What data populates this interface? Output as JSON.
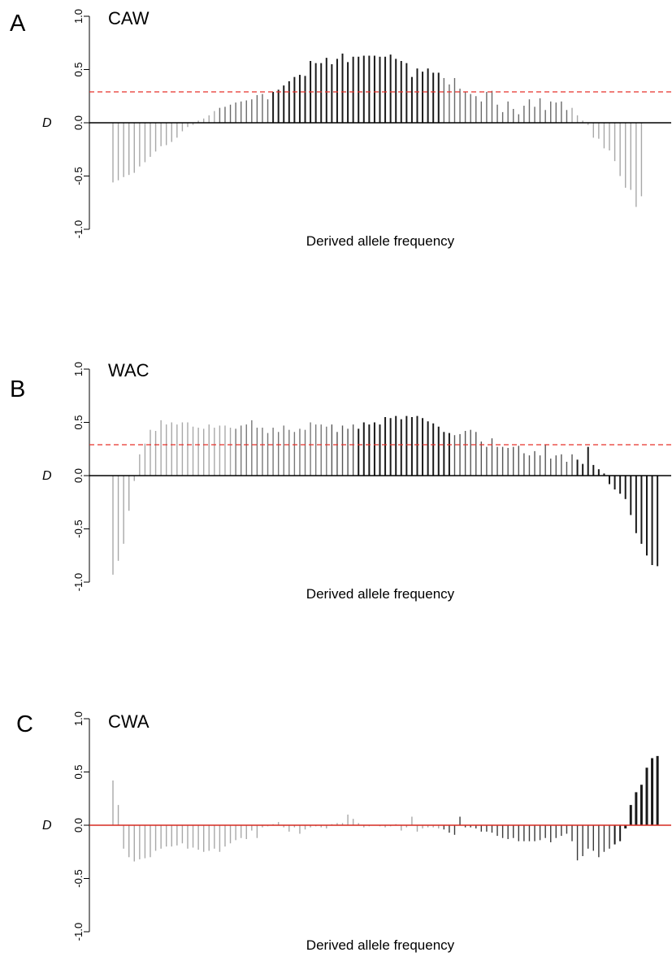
{
  "chart_data": [
    {
      "type": "bar",
      "panel": "A",
      "title": "CAW",
      "xlabel": "Derived allele frequency",
      "ylabel": "D",
      "ylim": [
        -1.0,
        1.0
      ],
      "yticks": [
        "-1.0",
        "-0.5",
        "0.0",
        "0.5",
        "1.0"
      ],
      "reference_line": {
        "y": 0.29,
        "style": "dashed",
        "color": "#e8302a"
      },
      "zero_line_color": "#000000",
      "grid": false,
      "values": [
        -0.56,
        -0.54,
        -0.51,
        -0.49,
        -0.47,
        -0.41,
        -0.37,
        -0.32,
        -0.27,
        -0.22,
        -0.21,
        -0.18,
        -0.14,
        -0.08,
        -0.04,
        -0.02,
        0.02,
        0.04,
        0.07,
        0.11,
        0.14,
        0.15,
        0.17,
        0.19,
        0.2,
        0.21,
        0.22,
        0.26,
        0.27,
        0.22,
        0.29,
        0.31,
        0.35,
        0.39,
        0.43,
        0.45,
        0.44,
        0.58,
        0.56,
        0.56,
        0.61,
        0.55,
        0.6,
        0.65,
        0.57,
        0.62,
        0.62,
        0.63,
        0.63,
        0.63,
        0.62,
        0.62,
        0.64,
        0.6,
        0.58,
        0.56,
        0.43,
        0.51,
        0.48,
        0.51,
        0.47,
        0.47,
        0.42,
        0.36,
        0.42,
        0.32,
        0.29,
        0.27,
        0.25,
        0.2,
        0.29,
        0.3,
        0.17,
        0.1,
        0.2,
        0.13,
        0.08,
        0.16,
        0.22,
        0.15,
        0.23,
        0.12,
        0.2,
        0.19,
        0.2,
        0.12,
        0.14,
        0.07,
        0.02,
        -0.02,
        -0.14,
        -0.15,
        -0.24,
        -0.26,
        -0.36,
        -0.5,
        -0.61,
        -0.63,
        -0.79,
        -0.69
      ],
      "colors_by_position": "grey-black-grey"
    },
    {
      "type": "bar",
      "panel": "B",
      "title": "WAC",
      "xlabel": "Derived allele frequency",
      "ylabel": "D",
      "ylim": [
        -1.0,
        1.0
      ],
      "yticks": [
        "-1.0",
        "-0.5",
        "0.0",
        "0.5",
        "1.0"
      ],
      "reference_line": {
        "y": 0.29,
        "style": "dashed",
        "color": "#e8302a"
      },
      "zero_line_color": "#000000",
      "grid": false,
      "values": [
        -0.93,
        -0.8,
        -0.64,
        -0.33,
        -0.05,
        0.2,
        0.3,
        0.43,
        0.42,
        0.52,
        0.48,
        0.5,
        0.48,
        0.5,
        0.5,
        0.46,
        0.45,
        0.44,
        0.48,
        0.45,
        0.47,
        0.47,
        0.45,
        0.44,
        0.47,
        0.48,
        0.52,
        0.45,
        0.45,
        0.4,
        0.45,
        0.41,
        0.47,
        0.43,
        0.41,
        0.44,
        0.43,
        0.5,
        0.48,
        0.48,
        0.46,
        0.48,
        0.41,
        0.47,
        0.44,
        0.48,
        0.44,
        0.5,
        0.48,
        0.5,
        0.48,
        0.55,
        0.54,
        0.56,
        0.53,
        0.56,
        0.55,
        0.56,
        0.54,
        0.51,
        0.49,
        0.46,
        0.41,
        0.4,
        0.38,
        0.39,
        0.42,
        0.43,
        0.41,
        0.32,
        0.27,
        0.35,
        0.27,
        0.27,
        0.26,
        0.27,
        0.28,
        0.21,
        0.19,
        0.23,
        0.19,
        0.29,
        0.16,
        0.19,
        0.2,
        0.13,
        0.2,
        0.15,
        0.11,
        0.27,
        0.1,
        0.06,
        0.02,
        -0.08,
        -0.13,
        -0.17,
        -0.22,
        -0.37,
        -0.54,
        -0.64,
        -0.75,
        -0.84,
        -0.85
      ],
      "colors_by_position": "grey-black-black"
    },
    {
      "type": "bar",
      "panel": "C",
      "title": "CWA",
      "xlabel": "Derived allele frequency",
      "ylabel": "D",
      "ylim": [
        -1.0,
        1.0
      ],
      "yticks": [
        "-1.0",
        "-0.5",
        "0.0",
        "0.5",
        "1.0"
      ],
      "zero_line_color": "#d62a20",
      "grid": false,
      "values": [
        0.42,
        0.19,
        -0.22,
        -0.3,
        -0.34,
        -0.32,
        -0.31,
        -0.3,
        -0.24,
        -0.22,
        -0.2,
        -0.2,
        -0.19,
        -0.17,
        -0.22,
        -0.21,
        -0.23,
        -0.25,
        -0.24,
        -0.22,
        -0.25,
        -0.2,
        -0.17,
        -0.14,
        -0.12,
        -0.13,
        -0.05,
        -0.12,
        -0.02,
        -0.01,
        0.01,
        0.03,
        -0.02,
        -0.06,
        -0.02,
        -0.08,
        -0.04,
        -0.02,
        -0.01,
        -0.02,
        -0.03,
        0.01,
        0.02,
        0.02,
        0.1,
        0.06,
        0.02,
        -0.02,
        -0.01,
        0.0,
        -0.01,
        -0.02,
        -0.01,
        0.01,
        -0.05,
        -0.02,
        0.08,
        -0.06,
        -0.03,
        -0.02,
        -0.02,
        -0.03,
        -0.04,
        -0.07,
        -0.09,
        0.08,
        -0.02,
        -0.02,
        -0.03,
        -0.06,
        -0.06,
        -0.07,
        -0.1,
        -0.12,
        -0.13,
        -0.12,
        -0.15,
        -0.15,
        -0.15,
        -0.15,
        -0.14,
        -0.12,
        -0.16,
        -0.12,
        -0.1,
        -0.08,
        -0.15,
        -0.33,
        -0.29,
        -0.22,
        -0.24,
        -0.3,
        -0.25,
        -0.22,
        -0.18,
        -0.15,
        -0.03,
        0.19,
        0.31,
        0.38,
        0.54,
        0.63,
        0.65
      ],
      "colors_by_position": "grey-grey-black"
    }
  ]
}
